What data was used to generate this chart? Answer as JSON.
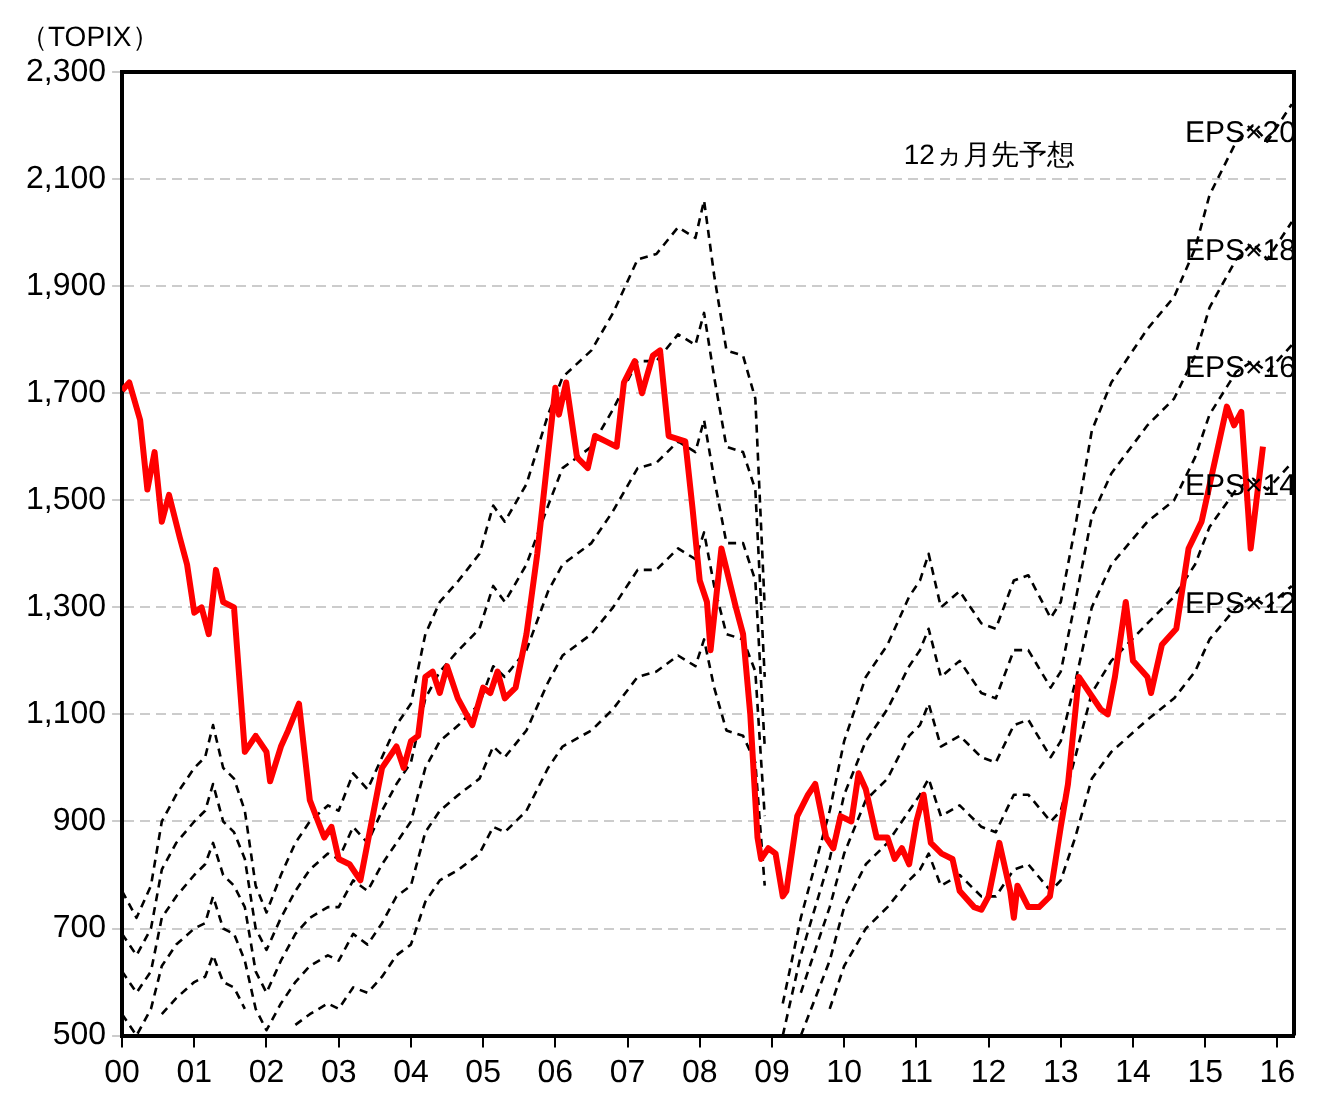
{
  "chart_data": {
    "type": "line",
    "ylabel": "（TOPIX）",
    "annotations": [
      "12ヵ月先予想"
    ],
    "x": [
      2000.0,
      2000.2,
      2000.4,
      2000.55,
      2000.75,
      2001.0,
      2001.15,
      2001.26,
      2001.4,
      2001.55,
      2001.7,
      2001.85,
      2002.0,
      2002.2,
      2002.4,
      2002.6,
      2002.85,
      2003.0,
      2003.2,
      2003.4,
      2003.6,
      2003.8,
      2004.0,
      2004.2,
      2004.4,
      2004.66,
      2004.95,
      2005.14,
      2005.3,
      2005.6,
      2005.9,
      2006.1,
      2006.5,
      2006.8,
      2007.14,
      2007.4,
      2007.7,
      2007.94,
      2008.06,
      2008.2,
      2008.37,
      2008.6,
      2008.77,
      2008.9,
      2009.0,
      2009.15,
      2009.4,
      2009.6,
      2009.8,
      2010.0,
      2010.3,
      2010.6,
      2010.9,
      2011.05,
      2011.17,
      2011.34,
      2011.6,
      2011.9,
      2012.1,
      2012.35,
      2012.55,
      2012.86,
      2013.0,
      2013.2,
      2013.43,
      2013.7,
      2014.2,
      2014.57,
      2014.86,
      2015.06,
      2015.43,
      2015.66,
      2015.86,
      2016.2
    ],
    "series": [
      {
        "name": "EPS×20",
        "color": "#000000",
        "line_style": "dashed",
        "values": [
          770,
          720,
          780,
          900,
          950,
          1000,
          1020,
          1080,
          1000,
          980,
          920,
          780,
          730,
          800,
          860,
          900,
          930,
          920,
          990,
          960,
          1020,
          1080,
          1120,
          1250,
          1310,
          1350,
          1400,
          1490,
          1460,
          1530,
          1660,
          1730,
          1780,
          1850,
          1950,
          1960,
          2010,
          1990,
          2060,
          1920,
          1780,
          1770,
          1690,
          1300,
          null,
          560,
          720,
          820,
          920,
          1050,
          1170,
          1230,
          1320,
          1350,
          1400,
          1300,
          1330,
          1270,
          1260,
          1350,
          1360,
          1280,
          1310,
          1450,
          1630,
          1720,
          1820,
          1880,
          1970,
          2070,
          2170,
          2200,
          2170,
          2240
        ]
      },
      {
        "name": "EPS×18",
        "color": "#000000",
        "line_style": "dashed",
        "values": [
          690,
          650,
          700,
          810,
          860,
          900,
          920,
          970,
          900,
          880,
          830,
          700,
          660,
          720,
          770,
          810,
          840,
          830,
          890,
          860,
          920,
          970,
          1010,
          1130,
          1180,
          1220,
          1260,
          1340,
          1310,
          1380,
          1490,
          1560,
          1600,
          1670,
          1760,
          1760,
          1810,
          1790,
          1850,
          1730,
          1600,
          1590,
          1520,
          1170,
          null,
          500,
          650,
          740,
          830,
          950,
          1050,
          1110,
          1190,
          1220,
          1260,
          1170,
          1200,
          1140,
          1130,
          1220,
          1220,
          1150,
          1180,
          1310,
          1470,
          1550,
          1640,
          1690,
          1770,
          1860,
          1950,
          1980,
          1950,
          2020
        ]
      },
      {
        "name": "EPS×16",
        "color": "#000000",
        "line_style": "dashed",
        "values": [
          620,
          580,
          620,
          720,
          760,
          800,
          820,
          860,
          800,
          780,
          740,
          620,
          580,
          640,
          690,
          720,
          740,
          740,
          790,
          770,
          820,
          860,
          900,
          1000,
          1050,
          1080,
          1120,
          1190,
          1170,
          1220,
          1330,
          1380,
          1420,
          1480,
          1560,
          1570,
          1610,
          1590,
          1650,
          1540,
          1420,
          1420,
          1350,
          1040,
          null,
          null,
          580,
          660,
          740,
          840,
          940,
          980,
          1060,
          1080,
          1120,
          1040,
          1060,
          1020,
          1010,
          1080,
          1090,
          1020,
          1050,
          1160,
          1300,
          1380,
          1460,
          1500,
          1580,
          1660,
          1740,
          1760,
          1740,
          1790
        ]
      },
      {
        "name": "EPS×14",
        "color": "#000000",
        "line_style": "dashed",
        "values": [
          540,
          500,
          550,
          630,
          670,
          700,
          710,
          760,
          700,
          690,
          640,
          550,
          510,
          560,
          600,
          630,
          650,
          640,
          690,
          670,
          710,
          760,
          780,
          880,
          920,
          950,
          980,
          1040,
          1020,
          1070,
          1160,
          1210,
          1250,
          1300,
          1370,
          1370,
          1410,
          1390,
          1440,
          1340,
          1250,
          1240,
          1180,
          910,
          null,
          null,
          500,
          570,
          640,
          740,
          820,
          860,
          920,
          950,
          980,
          910,
          930,
          890,
          880,
          950,
          950,
          900,
          920,
          1020,
          1140,
          1200,
          1270,
          1320,
          1380,
          1450,
          1520,
          1540,
          1520,
          1570
        ]
      },
      {
        "name": "EPS×12",
        "color": "#000000",
        "line_style": "dashed",
        "values": [
          null,
          null,
          null,
          540,
          570,
          600,
          610,
          650,
          600,
          590,
          550,
          null,
          null,
          null,
          520,
          540,
          560,
          550,
          590,
          580,
          610,
          650,
          670,
          750,
          790,
          810,
          840,
          890,
          880,
          920,
          1000,
          1040,
          1070,
          1110,
          1170,
          1180,
          1210,
          1190,
          1240,
          1150,
          1070,
          1060,
          1010,
          780,
          null,
          null,
          null,
          null,
          550,
          630,
          700,
          740,
          790,
          810,
          840,
          780,
          800,
          760,
          760,
          810,
          820,
          770,
          790,
          870,
          980,
          1030,
          1090,
          1130,
          1180,
          1240,
          1300,
          1320,
          1300,
          1340
        ]
      },
      {
        "color": "#ff0000",
        "line_style": "solid",
        "x": [
          2000.0,
          2000.1,
          2000.25,
          2000.35,
          2000.45,
          2000.55,
          2000.65,
          2000.8,
          2000.9,
          2001.0,
          2001.1,
          2001.2,
          2001.3,
          2001.4,
          2001.55,
          2001.7,
          2001.85,
          2002.0,
          2002.05,
          2002.2,
          2002.3,
          2002.45,
          2002.6,
          2002.8,
          2002.9,
          2003.0,
          2003.15,
          2003.3,
          2003.5,
          2003.6,
          2003.8,
          2003.9,
          2004.0,
          2004.1,
          2004.2,
          2004.3,
          2004.4,
          2004.5,
          2004.65,
          2004.85,
          2005.0,
          2005.1,
          2005.2,
          2005.3,
          2005.45,
          2005.6,
          2005.75,
          2006.0,
          2006.05,
          2006.15,
          2006.3,
          2006.45,
          2006.55,
          2006.7,
          2006.85,
          2006.95,
          2007.1,
          2007.2,
          2007.35,
          2007.45,
          2007.57,
          2007.8,
          2007.9,
          2008.0,
          2008.1,
          2008.15,
          2008.3,
          2008.5,
          2008.6,
          2008.7,
          2008.8,
          2008.85,
          2008.95,
          2009.05,
          2009.15,
          2009.2,
          2009.35,
          2009.5,
          2009.6,
          2009.75,
          2009.85,
          2009.95,
          2010.1,
          2010.2,
          2010.3,
          2010.45,
          2010.6,
          2010.7,
          2010.8,
          2010.9,
          2011.0,
          2011.1,
          2011.2,
          2011.35,
          2011.5,
          2011.6,
          2011.8,
          2011.9,
          2012.0,
          2012.15,
          2012.3,
          2012.35,
          2012.4,
          2012.55,
          2012.7,
          2012.85,
          2013.0,
          2013.1,
          2013.25,
          2013.4,
          2013.55,
          2013.65,
          2013.75,
          2013.9,
          2014.0,
          2014.2,
          2014.25,
          2014.4,
          2014.6,
          2014.77,
          2014.95,
          2015.3,
          2015.4,
          2015.5,
          2015.63,
          2015.8
        ],
        "values": [
          1705,
          1720,
          1650,
          1520,
          1590,
          1460,
          1510,
          1430,
          1380,
          1290,
          1300,
          1250,
          1370,
          1310,
          1300,
          1030,
          1060,
          1030,
          975,
          1040,
          1070,
          1120,
          940,
          870,
          890,
          830,
          820,
          790,
          930,
          1000,
          1040,
          1000,
          1050,
          1060,
          1170,
          1180,
          1140,
          1190,
          1130,
          1080,
          1150,
          1140,
          1180,
          1130,
          1150,
          1250,
          1400,
          1710,
          1660,
          1720,
          1580,
          1560,
          1620,
          1610,
          1600,
          1720,
          1760,
          1700,
          1770,
          1780,
          1620,
          1610,
          1485,
          1350,
          1310,
          1220,
          1410,
          1300,
          1250,
          1100,
          870,
          830,
          850,
          840,
          760,
          770,
          910,
          950,
          970,
          870,
          850,
          910,
          900,
          990,
          960,
          870,
          870,
          830,
          850,
          820,
          900,
          950,
          860,
          840,
          830,
          770,
          740,
          735,
          760,
          860,
          770,
          720,
          780,
          740,
          740,
          760,
          890,
          970,
          1170,
          1140,
          1110,
          1100,
          1170,
          1310,
          1200,
          1170,
          1140,
          1230,
          1260,
          1410,
          1460,
          1675,
          1640,
          1665,
          1410,
          1600
        ]
      }
    ],
    "xlim": [
      2000,
      2016.23
    ],
    "ylim": [
      500,
      2300
    ],
    "xticks": [
      {
        "value": 2000,
        "label": "00"
      },
      {
        "value": 2001,
        "label": "01"
      },
      {
        "value": 2002,
        "label": "02"
      },
      {
        "value": 2003,
        "label": "03"
      },
      {
        "value": 2004,
        "label": "04"
      },
      {
        "value": 2005,
        "label": "05"
      },
      {
        "value": 2006,
        "label": "06"
      },
      {
        "value": 2007,
        "label": "07"
      },
      {
        "value": 2008,
        "label": "08"
      },
      {
        "value": 2009,
        "label": "09"
      },
      {
        "value": 2010,
        "label": "10"
      },
      {
        "value": 2011,
        "label": "11"
      },
      {
        "value": 2012,
        "label": "12"
      },
      {
        "value": 2013,
        "label": "13"
      },
      {
        "value": 2014,
        "label": "14"
      },
      {
        "value": 2015,
        "label": "15"
      },
      {
        "value": 2016,
        "label": "16"
      }
    ],
    "yticks": [
      500,
      700,
      900,
      {
        "value": 1100,
        "label": "1,100"
      },
      {
        "value": 1300,
        "label": "1,300"
      },
      {
        "value": 1500,
        "label": "1,500"
      },
      {
        "value": 1700,
        "label": "1,700"
      },
      {
        "value": 1900,
        "label": "1,900"
      },
      {
        "value": 2100,
        "label": "2,100"
      },
      {
        "value": 2300,
        "label": "2,300"
      }
    ],
    "grid": "y",
    "legend": false,
    "marker": "none"
  }
}
